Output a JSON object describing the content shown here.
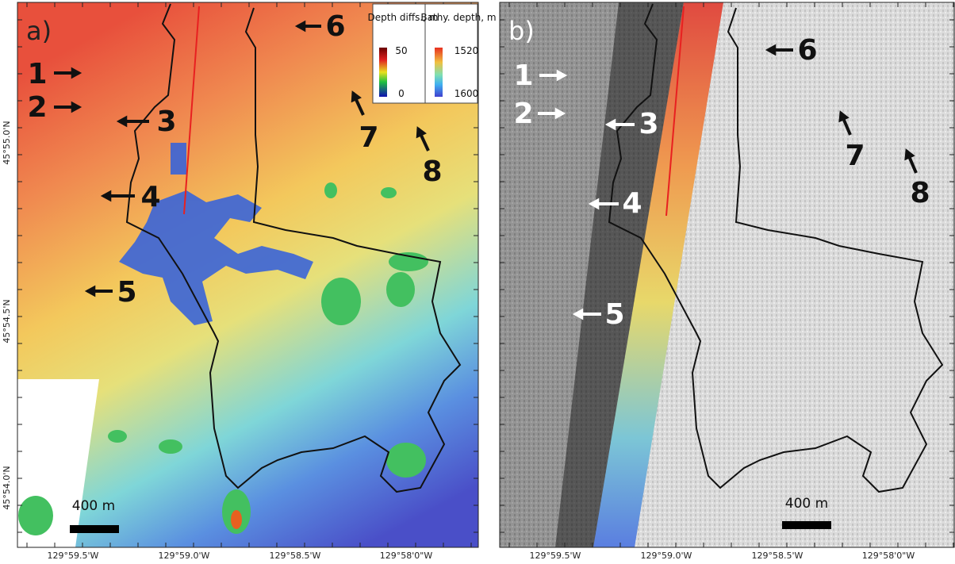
{
  "panels": [
    {
      "label": "a)",
      "annotations": [
        "1",
        "2",
        "3",
        "4",
        "5",
        "6",
        "7",
        "8"
      ],
      "scale_bar": "400 m",
      "lat_labels": [
        "45°55.0'N",
        "45°54.5'N",
        "45°54.0'N"
      ],
      "lon_labels": [
        "129°59.5'W",
        "129°59.0'W",
        "129°58.5'W",
        "129°58'0\"W"
      ],
      "legend": [
        {
          "title": "Depth diffs., m",
          "ticks": [
            50,
            0
          ]
        },
        {
          "title": "Bathy. depth, m",
          "ticks": [
            1520,
            1600
          ]
        }
      ]
    },
    {
      "label": "b)",
      "annotations": [
        "1",
        "2",
        "3",
        "4",
        "5",
        "6",
        "7",
        "8"
      ],
      "scale_bar": "400 m",
      "lon_labels": [
        "129°59.5'W",
        "129°59.0'W",
        "129°58.5'W",
        "129°58'0\"W"
      ]
    }
  ]
}
